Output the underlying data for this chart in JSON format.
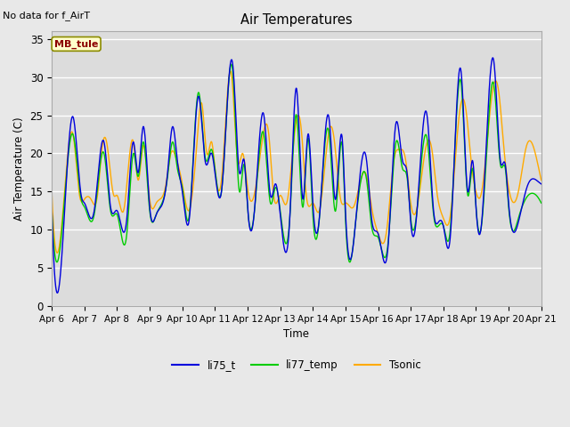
{
  "title": "Air Temperatures",
  "xlabel": "Time",
  "ylabel": "Air Temperature (C)",
  "top_left_text": "No data for f_AirT",
  "annotation_box": "MB_tule",
  "ylim": [
    0,
    36
  ],
  "yticks": [
    0,
    5,
    10,
    15,
    20,
    25,
    30,
    35
  ],
  "colors": {
    "li75_t": "#0000dd",
    "li77_temp": "#00cc00",
    "Tsonic": "#ffaa00"
  },
  "background_color": "#e8e8e8",
  "plot_bg_color": "#dcdcdc",
  "grid_color": "#ffffff",
  "linewidth": 1.0,
  "x_tick_labels": [
    "Apr 6",
    "Apr 7",
    "Apr 8",
    "Apr 9",
    "Apr 10",
    "Apr 11",
    "Apr 12",
    "Apr 13",
    "Apr 14",
    "Apr 15",
    "Apr 16",
    "Apr 17",
    "Apr 18",
    "Apr 19",
    "Apr 20",
    "Apr 21"
  ]
}
